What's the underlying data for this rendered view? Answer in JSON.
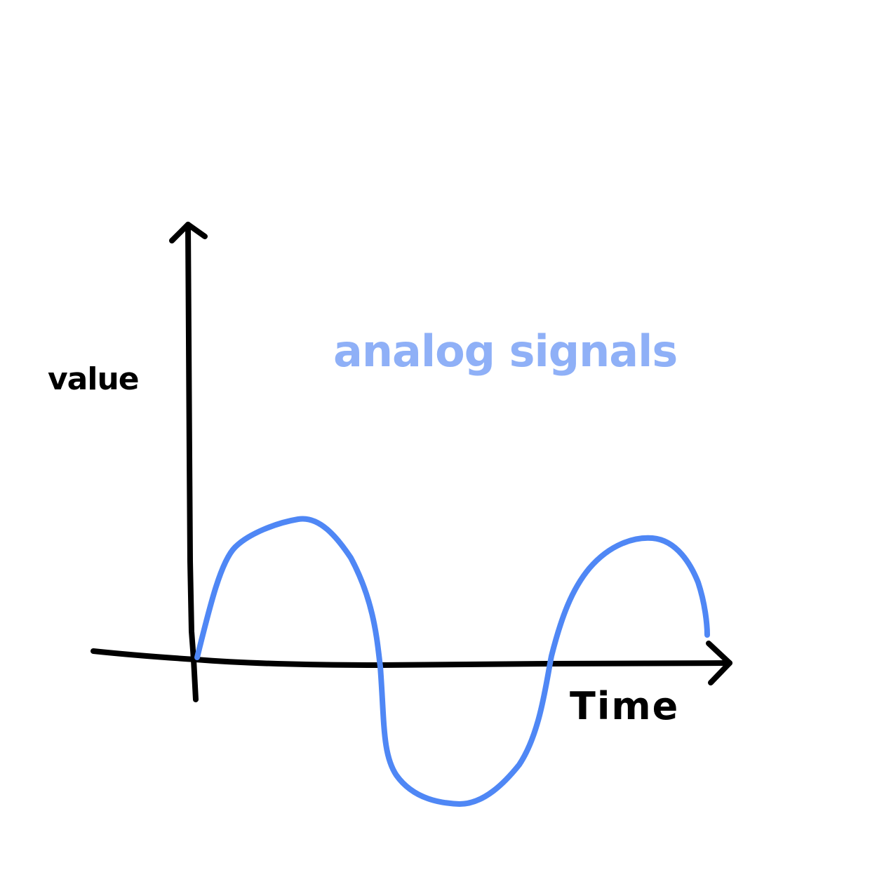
{
  "title": "analog signals",
  "y_axis_label": "value",
  "x_axis_label": "Time",
  "colors": {
    "background": "#ffffff",
    "axis": "#000000",
    "signal": "#4f87f5",
    "title": "#8fb0f7"
  }
}
